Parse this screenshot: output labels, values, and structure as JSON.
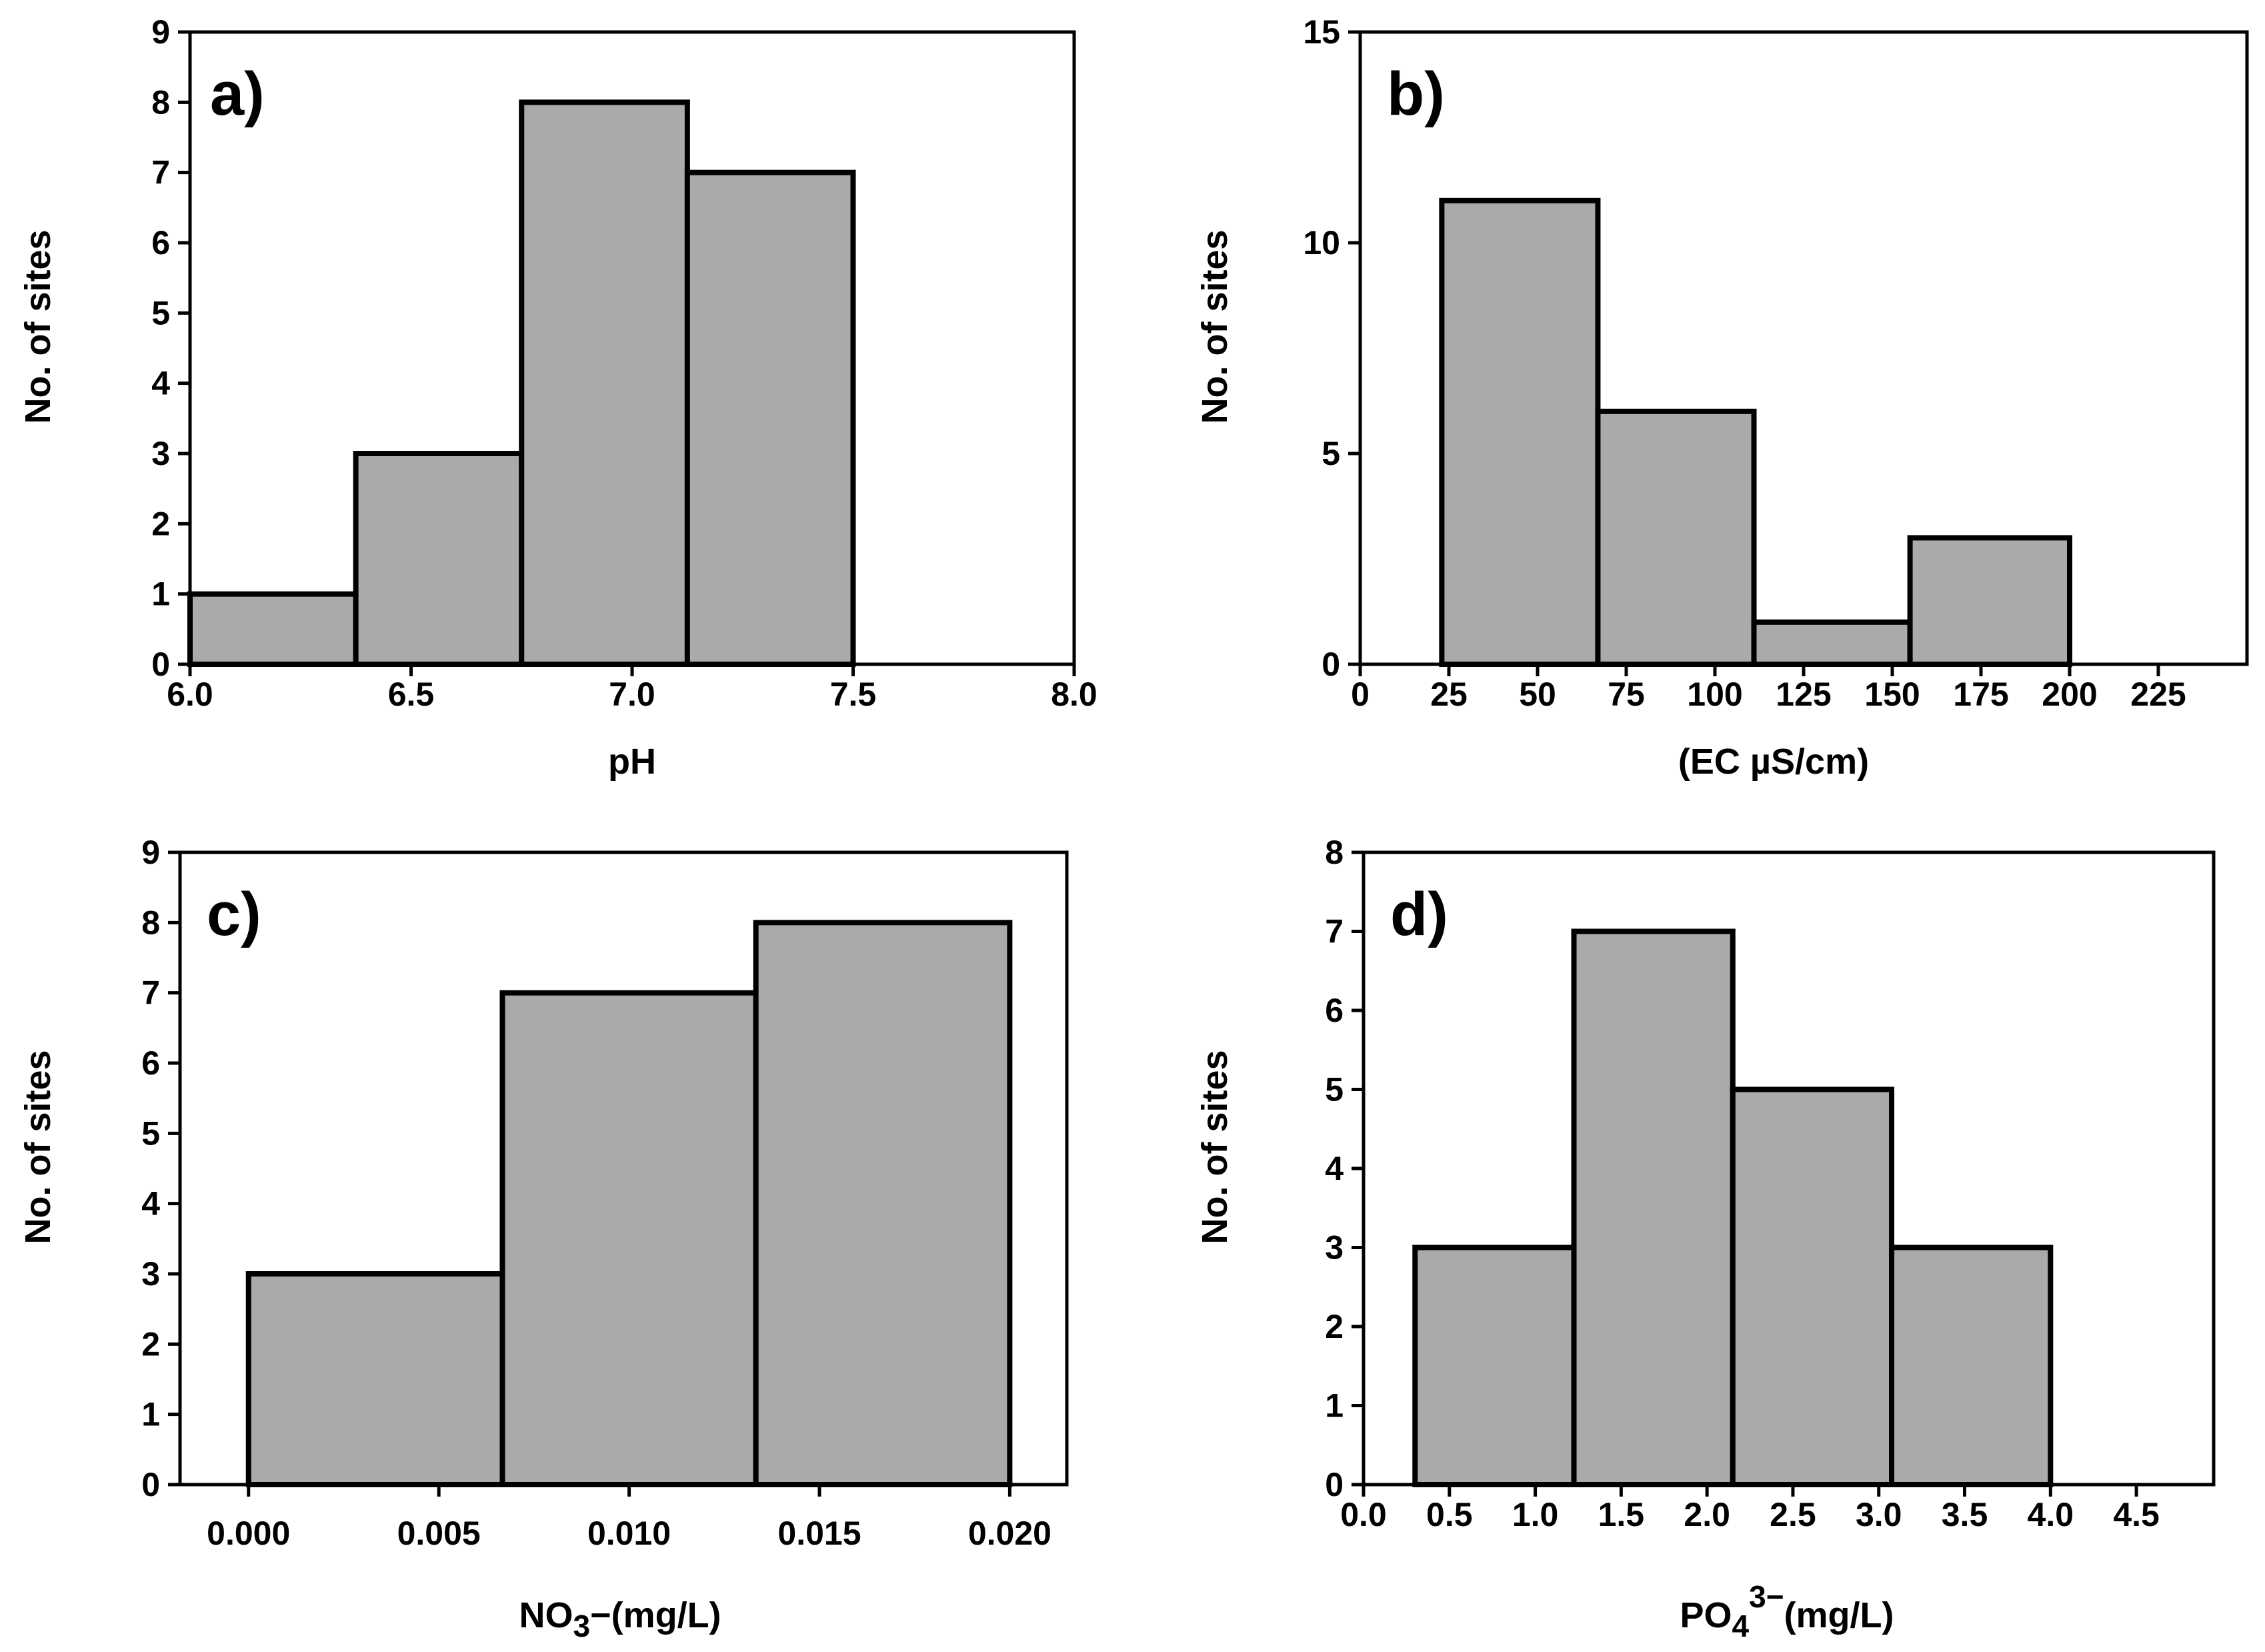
{
  "chart_data": [
    {
      "type": "bar",
      "panel_label": "a)",
      "xlabel": "pH",
      "ylabel": "No. of sites",
      "xlim": [
        6.0,
        8.0
      ],
      "ylim": [
        0,
        9
      ],
      "xticks": [
        6.0,
        6.5,
        7.0,
        7.5,
        8.0
      ],
      "xtick_labels": [
        "6.0",
        "6.5",
        "7.0",
        "7.5",
        "8.0"
      ],
      "yticks": [
        0,
        1,
        2,
        3,
        4,
        5,
        6,
        7,
        8,
        9
      ],
      "ytick_labels": [
        "0",
        "1",
        "2",
        "3",
        "4",
        "5",
        "6",
        "7",
        "8",
        "9"
      ],
      "bins": [
        [
          6.0,
          6.375
        ],
        [
          6.375,
          6.75
        ],
        [
          6.75,
          7.125
        ],
        [
          7.125,
          7.5
        ]
      ],
      "values": [
        1,
        3,
        8,
        7
      ]
    },
    {
      "type": "bar",
      "panel_label": "b)",
      "xlabel": "(EC µS/cm)",
      "ylabel": "No. of sites",
      "xlim": [
        0,
        250
      ],
      "ylim": [
        0,
        15
      ],
      "xticks": [
        0,
        25,
        50,
        75,
        100,
        125,
        150,
        175,
        200,
        225
      ],
      "xtick_labels": [
        "0",
        "25",
        "50",
        "75",
        "100",
        "125",
        "150",
        "175",
        "200",
        "225"
      ],
      "yticks": [
        0,
        5,
        10,
        15
      ],
      "ytick_labels": [
        "0",
        "5",
        "10",
        "15"
      ],
      "bins": [
        [
          23,
          67
        ],
        [
          67,
          111
        ],
        [
          111,
          155
        ],
        [
          155,
          200
        ]
      ],
      "values": [
        11,
        6,
        1,
        3
      ]
    },
    {
      "type": "bar",
      "panel_label": "c)",
      "xlabel_main": "NO",
      "xlabel_sub": "3",
      "xlabel_rest": "−(mg/L)",
      "ylabel": "No. of sites",
      "xlim": [
        -0.0018,
        0.0215
      ],
      "ylim": [
        0,
        9
      ],
      "xticks": [
        0.0,
        0.005,
        0.01,
        0.015,
        0.02
      ],
      "xtick_labels": [
        "0.000",
        "0.005",
        "0.010",
        "0.015",
        "0.020"
      ],
      "yticks": [
        0,
        1,
        2,
        3,
        4,
        5,
        6,
        7,
        8,
        9
      ],
      "ytick_labels": [
        "0",
        "1",
        "2",
        "3",
        "4",
        "5",
        "6",
        "7",
        "8",
        "9"
      ],
      "bins": [
        [
          0.0,
          0.00667
        ],
        [
          0.00667,
          0.01333
        ],
        [
          0.01333,
          0.02
        ]
      ],
      "values": [
        3,
        7,
        8
      ]
    },
    {
      "type": "bar",
      "panel_label": "d)",
      "xlabel_main": "PO",
      "xlabel_sub": "4",
      "xlabel_sup": "3−",
      "xlabel_rest": "(mg/L)",
      "ylabel": "No. of sites",
      "xlim": [
        0,
        4.95
      ],
      "ylim": [
        0,
        8
      ],
      "xticks": [
        0.0,
        0.5,
        1.0,
        1.5,
        2.0,
        2.5,
        3.0,
        3.5,
        4.0,
        4.5
      ],
      "xtick_labels": [
        "0.0",
        "0.5",
        "1.0",
        "1.5",
        "2.0",
        "2.5",
        "3.0",
        "3.5",
        "4.0",
        "4.5"
      ],
      "yticks": [
        0,
        1,
        2,
        3,
        4,
        5,
        6,
        7,
        8
      ],
      "ytick_labels": [
        "0",
        "1",
        "2",
        "3",
        "4",
        "5",
        "6",
        "7",
        "8"
      ],
      "bins": [
        [
          0.3,
          1.225
        ],
        [
          1.225,
          2.15
        ],
        [
          2.15,
          3.075
        ],
        [
          3.075,
          4.0
        ]
      ],
      "values": [
        3,
        7,
        5,
        3
      ]
    }
  ]
}
